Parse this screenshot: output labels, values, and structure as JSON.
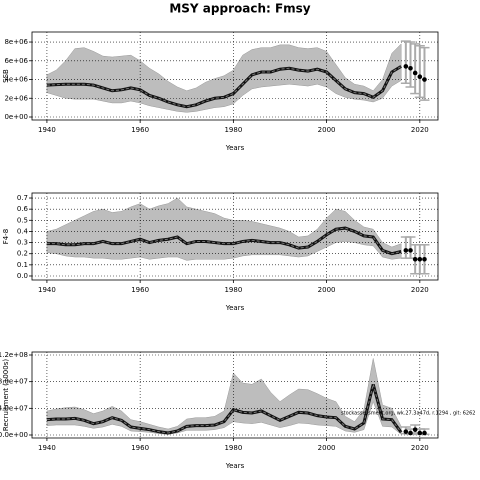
{
  "title": "MSY approach: Fmsy",
  "chart_data": [
    {
      "type": "line",
      "xlabel": "Years",
      "ylabel": "SSB",
      "x": [
        1940,
        1942,
        1944,
        1946,
        1948,
        1950,
        1952,
        1954,
        1956,
        1958,
        1960,
        1962,
        1964,
        1966,
        1968,
        1970,
        1972,
        1974,
        1976,
        1978,
        1980,
        1982,
        1984,
        1986,
        1988,
        1990,
        1992,
        1994,
        1996,
        1998,
        2000,
        2002,
        2004,
        2006,
        2008,
        2010,
        2012,
        2014,
        2016
      ],
      "values": [
        3400000.0,
        3450000.0,
        3500000.0,
        3500000.0,
        3500000.0,
        3400000.0,
        3100000.0,
        2800000.0,
        2900000.0,
        3100000.0,
        2900000.0,
        2300000.0,
        2000000.0,
        1600000.0,
        1300000.0,
        1100000.0,
        1300000.0,
        1700000.0,
        2000000.0,
        2100000.0,
        2500000.0,
        3500000.0,
        4500000.0,
        4800000.0,
        4800000.0,
        5100000.0,
        5200000.0,
        5000000.0,
        4900000.0,
        5100000.0,
        4800000.0,
        3900000.0,
        3000000.0,
        2600000.0,
        2500000.0,
        2100000.0,
        2800000.0,
        4800000.0,
        5400000.0
      ],
      "upper": [
        4500000.0,
        5000000.0,
        6000000.0,
        7300000.0,
        7400000.0,
        7000000.0,
        6500000.0,
        6400000.0,
        6500000.0,
        6600000.0,
        6000000.0,
        5200000.0,
        4600000.0,
        3800000.0,
        3200000.0,
        2800000.0,
        3100000.0,
        3700000.0,
        4100000.0,
        4400000.0,
        5000000.0,
        6600000.0,
        7200000.0,
        7400000.0,
        7400000.0,
        7700000.0,
        7700000.0,
        7400000.0,
        7300000.0,
        7400000.0,
        7000000.0,
        5600000.0,
        4200000.0,
        3500000.0,
        3300000.0,
        2800000.0,
        4000000.0,
        6800000.0,
        7800000.0
      ],
      "lower": [
        2600000.0,
        2300000.0,
        2000000.0,
        1900000.0,
        1900000.0,
        1900000.0,
        1700000.0,
        1500000.0,
        1500000.0,
        1700000.0,
        1500000.0,
        1200000.0,
        1000000.0,
        800000.0,
        600000.0,
        500000.0,
        600000.0,
        800000.0,
        1000000.0,
        1100000.0,
        1400000.0,
        2300000.0,
        3000000.0,
        3200000.0,
        3300000.0,
        3400000.0,
        3500000.0,
        3400000.0,
        3300000.0,
        3500000.0,
        3200000.0,
        2500000.0,
        2100000.0,
        1900000.0,
        1800000.0,
        1600000.0,
        2000000.0,
        3300000.0,
        3900000.0
      ],
      "forecast": {
        "x": [
          2017,
          2018,
          2019,
          2020,
          2021
        ],
        "values": [
          5400000.0,
          5200000.0,
          4700000.0,
          4300000.0,
          4000000.0
        ],
        "lower": [
          3600000.0,
          3200000.0,
          2500000.0,
          2100000.0,
          1800000.0
        ],
        "upper": [
          8100000.0,
          8000000.0,
          7800000.0,
          7600000.0,
          7400000.0
        ]
      },
      "xlim": [
        1936.8,
        2023.9
      ],
      "xticks": [
        1940,
        1960,
        1980,
        2000,
        2020
      ],
      "ylim": [
        -320000.0,
        9070000.0
      ],
      "yticks": [
        {
          "value": 0,
          "label": "0e+00"
        },
        {
          "value": 2000000.0,
          "label": "2e+06"
        },
        {
          "value": 4000000.0,
          "label": "4e+06"
        },
        {
          "value": 6000000.0,
          "label": "6e+06"
        },
        {
          "value": 8000000.0,
          "label": "8e+06"
        }
      ],
      "grid": true
    },
    {
      "type": "line",
      "xlabel": "Years",
      "ylabel": "F4-8",
      "x": [
        1940,
        1942,
        1944,
        1946,
        1948,
        1950,
        1952,
        1954,
        1956,
        1958,
        1960,
        1962,
        1964,
        1966,
        1968,
        1970,
        1972,
        1974,
        1976,
        1978,
        1980,
        1982,
        1984,
        1986,
        1988,
        1990,
        1992,
        1994,
        1996,
        1998,
        2000,
        2002,
        2004,
        2006,
        2008,
        2010,
        2012,
        2014,
        2016
      ],
      "values": [
        0.29,
        0.29,
        0.28,
        0.28,
        0.29,
        0.29,
        0.31,
        0.29,
        0.29,
        0.31,
        0.33,
        0.3,
        0.32,
        0.33,
        0.35,
        0.29,
        0.31,
        0.31,
        0.3,
        0.29,
        0.29,
        0.31,
        0.32,
        0.31,
        0.3,
        0.3,
        0.28,
        0.25,
        0.26,
        0.31,
        0.37,
        0.42,
        0.43,
        0.4,
        0.36,
        0.35,
        0.23,
        0.2,
        0.22
      ],
      "upper": [
        0.4,
        0.42,
        0.46,
        0.5,
        0.54,
        0.58,
        0.6,
        0.57,
        0.58,
        0.62,
        0.65,
        0.6,
        0.63,
        0.65,
        0.7,
        0.62,
        0.6,
        0.58,
        0.56,
        0.52,
        0.5,
        0.5,
        0.49,
        0.47,
        0.45,
        0.43,
        0.4,
        0.35,
        0.36,
        0.42,
        0.52,
        0.6,
        0.58,
        0.5,
        0.44,
        0.42,
        0.3,
        0.26,
        0.29
      ],
      "lower": [
        0.21,
        0.2,
        0.18,
        0.17,
        0.17,
        0.16,
        0.16,
        0.15,
        0.15,
        0.16,
        0.17,
        0.15,
        0.16,
        0.17,
        0.17,
        0.14,
        0.15,
        0.15,
        0.15,
        0.15,
        0.16,
        0.18,
        0.19,
        0.19,
        0.19,
        0.19,
        0.18,
        0.17,
        0.18,
        0.22,
        0.26,
        0.3,
        0.31,
        0.3,
        0.28,
        0.27,
        0.17,
        0.15,
        0.16
      ],
      "forecast": {
        "x": [
          2017,
          2018,
          2019,
          2020,
          2021
        ],
        "values": [
          0.23,
          0.23,
          0.15,
          0.15,
          0.15
        ],
        "lower": [
          0.16,
          0.16,
          0.02,
          0.02,
          0.02
        ],
        "upper": [
          0.35,
          0.35,
          0.28,
          0.28,
          0.28
        ]
      },
      "xlim": [
        1936.8,
        2023.9
      ],
      "xticks": [
        1940,
        1960,
        1980,
        2000,
        2020
      ],
      "ylim": [
        -0.036,
        0.745
      ],
      "yticks": [
        {
          "value": 0,
          "label": "0.0"
        },
        0.1,
        0.2,
        0.3,
        0.4,
        0.5,
        0.6,
        0.7
      ],
      "grid": true
    },
    {
      "type": "line",
      "xlabel": "Years",
      "ylabel": "Recruitment (1000s)",
      "annotation": "stockassessment.org, wk.27.3a47d, r.1294 , git: 6262",
      "x": [
        1940,
        1942,
        1944,
        1946,
        1948,
        1950,
        1952,
        1954,
        1956,
        1958,
        1960,
        1962,
        1964,
        1966,
        1968,
        1970,
        1972,
        1974,
        1976,
        1978,
        1980,
        1982,
        1984,
        1986,
        1988,
        1990,
        1992,
        1994,
        1996,
        1998,
        2000,
        2002,
        2004,
        2006,
        2008,
        2010,
        2012,
        2014,
        2016
      ],
      "values": [
        23000000.0,
        24000000.0,
        24000000.0,
        25000000.0,
        22000000.0,
        17000000.0,
        20000000.0,
        26000000.0,
        22000000.0,
        12000000.0,
        10000000.0,
        8000000.0,
        5000000.0,
        3000000.0,
        6000000.0,
        13000000.0,
        14000000.0,
        14000000.0,
        15000000.0,
        20000000.0,
        38000000.0,
        34000000.0,
        33000000.0,
        36000000.0,
        29000000.0,
        22000000.0,
        28000000.0,
        34000000.0,
        33000000.0,
        29000000.0,
        27000000.0,
        26000000.0,
        13000000.0,
        9000000.0,
        18000000.0,
        76000000.0,
        24000000.0,
        23000000.0,
        4000000.0
      ],
      "upper": [
        36000000.0,
        39000000.0,
        41000000.0,
        42000000.0,
        38000000.0,
        32000000.0,
        36000000.0,
        43000000.0,
        36000000.0,
        23000000.0,
        20000000.0,
        16000000.0,
        12000000.0,
        9000000.0,
        13000000.0,
        24000000.0,
        26000000.0,
        26000000.0,
        28000000.0,
        36000000.0,
        93000000.0,
        78000000.0,
        76000000.0,
        84000000.0,
        64000000.0,
        50000000.0,
        60000000.0,
        69000000.0,
        68000000.0,
        62000000.0,
        55000000.0,
        50000000.0,
        28000000.0,
        20000000.0,
        38000000.0,
        115000000.0,
        45000000.0,
        40000000.0,
        13000000.0
      ],
      "lower": [
        14000000.0,
        15000000.0,
        15000000.0,
        15000000.0,
        13000000.0,
        10000000.0,
        12000000.0,
        16000000.0,
        13000000.0,
        6000000.0,
        5000000.0,
        4000000.0,
        2000000.0,
        1000000.0,
        3000000.0,
        7000000.0,
        7000000.0,
        7000000.0,
        8000000.0,
        11000000.0,
        20000000.0,
        18000000.0,
        17000000.0,
        19000000.0,
        15000000.0,
        11000000.0,
        14000000.0,
        18000000.0,
        17000000.0,
        15000000.0,
        14000000.0,
        13000000.0,
        6000000.0,
        4000000.0,
        8000000.0,
        50000000.0,
        13000000.0,
        12000000.0,
        1000000.0
      ],
      "forecast": {
        "x": [
          2017,
          2018,
          2019,
          2020,
          2021
        ],
        "values": [
          5000000.0,
          3000000.0,
          8000000.0,
          3000000.0,
          3000000.0
        ],
        "lower": [
          2000000.0,
          1000000.0,
          3000000.0,
          1000000.0,
          1000000.0
        ],
        "upper": [
          12000000.0,
          9000000.0,
          15000000.0,
          9000000.0,
          9000000.0
        ]
      },
      "xlim": [
        1936.8,
        2023.9
      ],
      "xticks": [
        1940,
        1960,
        1980,
        2000,
        2020
      ],
      "ylim": [
        -4500000.0,
        124500000.0
      ],
      "yticks": [
        {
          "value": 0,
          "label": "0.0e+00"
        },
        {
          "value": 40000000.0,
          "label": "4.0e+07"
        },
        {
          "value": 80000000.0,
          "label": "8.0e+07"
        },
        {
          "value": 120000000.0,
          "label": "1.2e+08"
        }
      ],
      "grid": true
    }
  ]
}
